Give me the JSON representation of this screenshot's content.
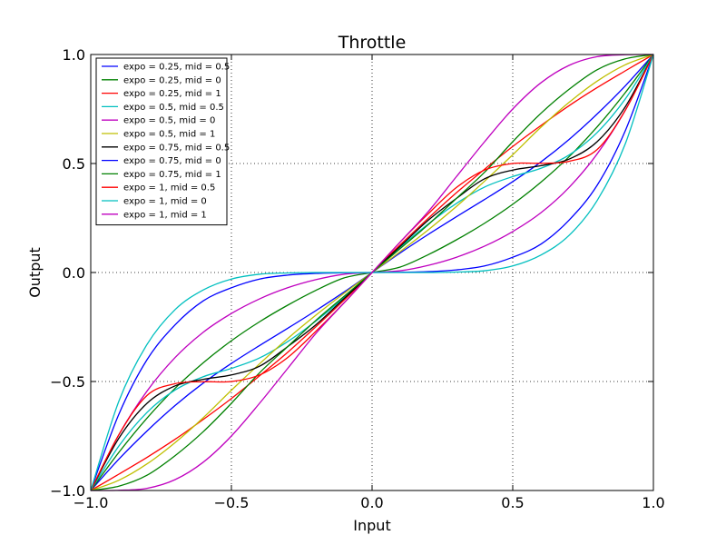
{
  "chart_data": {
    "type": "line",
    "title": "Throttle",
    "xlabel": "Input",
    "ylabel": "Output",
    "xlim": [
      -1.0,
      1.0
    ],
    "ylim": [
      -1.0,
      1.0
    ],
    "xticks": [
      -1.0,
      -0.5,
      0.0,
      0.5,
      1.0
    ],
    "yticks": [
      -1.0,
      -0.5,
      0.0,
      0.5,
      1.0
    ],
    "xtick_labels": [
      "−1.0",
      "−0.5",
      "0.0",
      "0.5",
      "1.0"
    ],
    "ytick_labels": [
      "−1.0",
      "−0.5",
      "0.0",
      "0.5",
      "1.0"
    ],
    "grid": true,
    "legend_position": "top-left",
    "x": [
      -1.0,
      -0.9,
      -0.8,
      -0.7,
      -0.6,
      -0.5,
      -0.4,
      -0.3,
      -0.2,
      -0.1,
      0.0,
      0.1,
      0.2,
      0.3,
      0.4,
      0.5,
      0.6,
      0.7,
      0.8,
      0.9,
      1.0
    ],
    "series": [
      {
        "name": "expo = 0.25, mid = 0.5",
        "color": "#0000ff",
        "values": [
          -1.0,
          -0.856,
          -0.727,
          -0.61,
          -0.507,
          -0.417,
          -0.335,
          -0.256,
          -0.175,
          -0.09,
          0.0,
          0.09,
          0.175,
          0.256,
          0.335,
          0.417,
          0.507,
          0.61,
          0.727,
          0.856,
          1.0
        ]
      },
      {
        "name": "expo = 0.25, mid = 0",
        "color": "#008000",
        "values": [
          -1.0,
          -0.825,
          -0.668,
          -0.531,
          -0.414,
          -0.313,
          -0.226,
          -0.15,
          -0.082,
          -0.025,
          0.0,
          0.025,
          0.082,
          0.15,
          0.226,
          0.313,
          0.414,
          0.531,
          0.668,
          0.825,
          1.0
        ]
      },
      {
        "name": "expo = 0.25, mid = 1",
        "color": "#ff0000",
        "values": [
          -1.0,
          -0.925,
          -0.848,
          -0.765,
          -0.674,
          -0.578,
          -0.474,
          -0.366,
          -0.249,
          -0.127,
          0.0,
          0.127,
          0.249,
          0.366,
          0.474,
          0.578,
          0.674,
          0.765,
          0.848,
          0.925,
          1.0
        ]
      },
      {
        "name": "expo = 0.5, mid = 0.5",
        "color": "#00bfbf",
        "values": [
          -1.0,
          -0.796,
          -0.642,
          -0.539,
          -0.478,
          -0.44,
          -0.392,
          -0.317,
          -0.223,
          -0.116,
          0.0,
          0.116,
          0.223,
          0.317,
          0.392,
          0.44,
          0.478,
          0.539,
          0.642,
          0.796,
          1.0
        ]
      },
      {
        "name": "expo = 0.5, mid = 0",
        "color": "#bf00bf",
        "values": [
          -1.0,
          -0.744,
          -0.544,
          -0.39,
          -0.274,
          -0.188,
          -0.121,
          -0.07,
          -0.033,
          -0.008,
          0.0,
          0.008,
          0.033,
          0.07,
          0.121,
          0.188,
          0.274,
          0.39,
          0.544,
          0.744,
          1.0
        ]
      },
      {
        "name": "expo = 0.5, mid = 1",
        "color": "#bfbf00",
        "values": [
          -1.0,
          -0.953,
          -0.878,
          -0.78,
          -0.666,
          -0.54,
          -0.419,
          -0.303,
          -0.196,
          -0.096,
          0.0,
          0.096,
          0.196,
          0.303,
          0.419,
          0.54,
          0.666,
          0.78,
          0.878,
          0.953,
          1.0
        ]
      },
      {
        "name": "expo = 0.75, mid = 0.5",
        "color": "#000000",
        "values": [
          -1.0,
          -0.76,
          -0.6,
          -0.52,
          -0.49,
          -0.47,
          -0.43,
          -0.34,
          -0.24,
          -0.12,
          0.0,
          0.12,
          0.24,
          0.34,
          0.43,
          0.47,
          0.49,
          0.52,
          0.6,
          0.76,
          1.0
        ]
      },
      {
        "name": "expo = 0.75, mid = 0",
        "color": "#0000ff",
        "values": [
          -1.0,
          -0.65,
          -0.4,
          -0.24,
          -0.13,
          -0.07,
          -0.03,
          -0.012,
          -0.004,
          -0.001,
          0.0,
          0.001,
          0.004,
          0.012,
          0.03,
          0.07,
          0.13,
          0.24,
          0.4,
          0.65,
          1.0
        ]
      },
      {
        "name": "expo = 0.75, mid = 1",
        "color": "#008000",
        "values": [
          -1.0,
          -0.98,
          -0.93,
          -0.84,
          -0.73,
          -0.6,
          -0.46,
          -0.34,
          -0.22,
          -0.11,
          0.0,
          0.11,
          0.22,
          0.34,
          0.46,
          0.6,
          0.73,
          0.84,
          0.93,
          0.98,
          1.0
        ]
      },
      {
        "name": "expo = 1, mid = 0.5",
        "color": "#ff0000",
        "values": [
          -1.0,
          -0.744,
          -0.564,
          -0.51,
          -0.501,
          -0.5,
          -0.47,
          -0.39,
          -0.27,
          -0.14,
          0.0,
          0.14,
          0.27,
          0.39,
          0.47,
          0.5,
          0.501,
          0.51,
          0.564,
          0.744,
          1.0
        ]
      },
      {
        "name": "expo = 1, mid = 0",
        "color": "#00bfbf",
        "values": [
          -1.0,
          -0.59,
          -0.33,
          -0.17,
          -0.08,
          -0.03,
          -0.008,
          -0.002,
          0.0,
          0.0,
          0.0,
          0.0,
          0.0,
          0.002,
          0.008,
          0.03,
          0.08,
          0.17,
          0.33,
          0.59,
          1.0
        ]
      },
      {
        "name": "expo = 1, mid = 1",
        "color": "#bf00bf",
        "values": [
          -1.0,
          -0.999,
          -0.99,
          -0.95,
          -0.87,
          -0.75,
          -0.6,
          -0.44,
          -0.28,
          -0.14,
          0.0,
          0.14,
          0.28,
          0.44,
          0.6,
          0.75,
          0.87,
          0.95,
          0.99,
          0.999,
          1.0
        ]
      }
    ]
  }
}
